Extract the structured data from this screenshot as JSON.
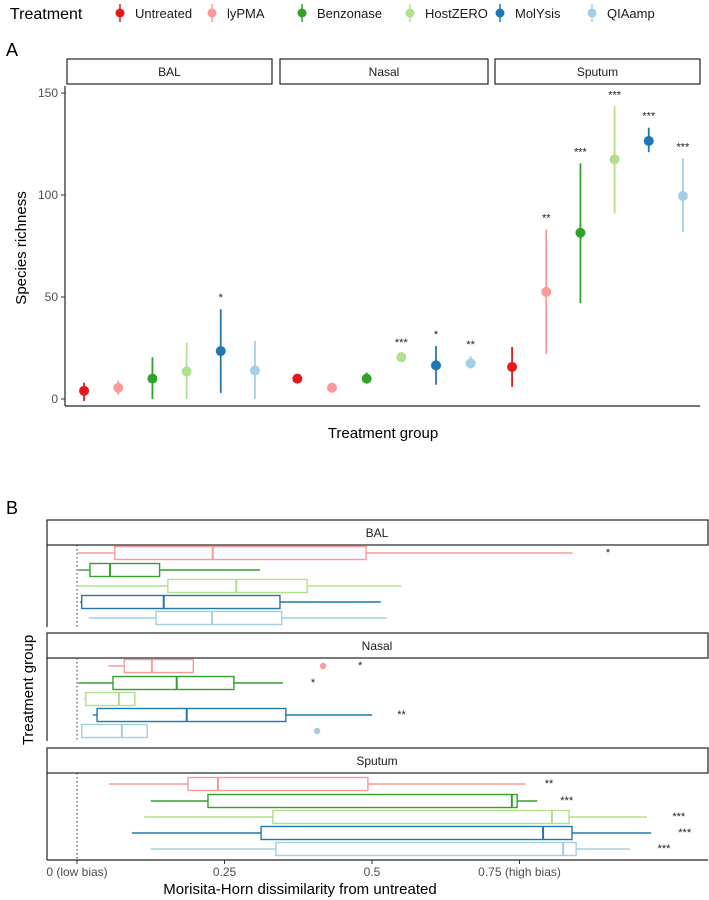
{
  "legend": {
    "title": "Treatment",
    "items": [
      {
        "label": "Untreated",
        "color": "#e31a1c"
      },
      {
        "label": "lyPMA",
        "color": "#fb9a99"
      },
      {
        "label": "Benzonase",
        "color": "#33a02c"
      },
      {
        "label": "HostZERO",
        "color": "#b2df8a"
      },
      {
        "label": "MolYsis",
        "color": "#1f78b4"
      },
      {
        "label": "QIAamp",
        "color": "#a6cee3"
      }
    ]
  },
  "chart_data": [
    {
      "panel_label": "A",
      "type": "scatter",
      "subtype": "point-range by facet",
      "facets": [
        "BAL",
        "Nasal",
        "Sputum"
      ],
      "xlabel": "Treatment group",
      "ylabel": "Species richness",
      "ylim": [
        -4,
        155
      ],
      "yticks": [
        "0",
        "50",
        "100",
        "150"
      ],
      "ytick_values": [
        0,
        50,
        100,
        150
      ],
      "series": {
        "BAL": [
          {
            "treatment": "Untreated",
            "mean": 4,
            "low": -1,
            "high": 8,
            "sig": ""
          },
          {
            "treatment": "lyPMA",
            "mean": 5.5,
            "low": 2,
            "high": 9,
            "sig": ""
          },
          {
            "treatment": "Benzonase",
            "mean": 10,
            "low": 0,
            "high": 20.5,
            "sig": ""
          },
          {
            "treatment": "HostZERO",
            "mean": 13.5,
            "low": 0,
            "high": 27.5,
            "sig": ""
          },
          {
            "treatment": "MolYsis",
            "mean": 23.5,
            "low": 3,
            "high": 44,
            "sig": "*"
          },
          {
            "treatment": "QIAamp",
            "mean": 14,
            "low": 0,
            "high": 28.5,
            "sig": ""
          }
        ],
        "Nasal": [
          {
            "treatment": "Untreated",
            "mean": 10,
            "low": 8,
            "high": 12,
            "sig": ""
          },
          {
            "treatment": "lyPMA",
            "mean": 5.5,
            "low": 4,
            "high": 7,
            "sig": ""
          },
          {
            "treatment": "Benzonase",
            "mean": 10,
            "low": 7.5,
            "high": 13,
            "sig": ""
          },
          {
            "treatment": "HostZERO",
            "mean": 20.5,
            "low": 19,
            "high": 22,
            "sig": "***"
          },
          {
            "treatment": "MolYsis",
            "mean": 16.5,
            "low": 7,
            "high": 26,
            "sig": "*"
          },
          {
            "treatment": "QIAamp",
            "mean": 17.5,
            "low": 15,
            "high": 21,
            "sig": "**"
          }
        ],
        "Sputum": [
          {
            "treatment": "Untreated",
            "mean": 15.7,
            "low": 6,
            "high": 25.5,
            "sig": ""
          },
          {
            "treatment": "lyPMA",
            "mean": 52.5,
            "low": 22,
            "high": 83,
            "sig": "**"
          },
          {
            "treatment": "Benzonase",
            "mean": 81.5,
            "low": 47,
            "high": 115.5,
            "sig": "***"
          },
          {
            "treatment": "HostZERO",
            "mean": 117.5,
            "low": 91,
            "high": 143.5,
            "sig": "***"
          },
          {
            "treatment": "MolYsis",
            "mean": 126.5,
            "low": 121,
            "high": 133,
            "sig": "***"
          },
          {
            "treatment": "QIAamp",
            "mean": 99.5,
            "low": 82,
            "high": 118,
            "sig": "***"
          }
        ]
      }
    },
    {
      "panel_label": "B",
      "type": "box",
      "facets": [
        "BAL",
        "Nasal",
        "Sputum"
      ],
      "xlabel": "Morisita-Horn dissimilarity from untreated",
      "ylabel": "Treatment group",
      "xlim": [
        -0.05,
        1.07
      ],
      "xticks": [
        "0 (low bias)",
        "0.25",
        "0.5",
        "0.75 (high bias)"
      ],
      "xtick_values": [
        0,
        0.25,
        0.5,
        0.75
      ],
      "reference_line": 0,
      "series": {
        "BAL": [
          {
            "treatment": "lyPMA",
            "min": 0.0,
            "q1": 0.064,
            "median": 0.23,
            "q3": 0.49,
            "max": 0.84,
            "outliers": [],
            "sig": "*",
            "sig_at": 0.9
          },
          {
            "treatment": "Benzonase",
            "min": 0.002,
            "q1": 0.022,
            "median": 0.056,
            "q3": 0.14,
            "max": 0.31,
            "outliers": [],
            "sig": ""
          },
          {
            "treatment": "HostZERO",
            "min": 0.0,
            "q1": 0.154,
            "median": 0.27,
            "q3": 0.39,
            "max": 0.55,
            "outliers": [],
            "sig": ""
          },
          {
            "treatment": "MolYsis",
            "min": 0.005,
            "q1": 0.008,
            "median": 0.147,
            "q3": 0.344,
            "max": 0.515,
            "outliers": [],
            "sig": ""
          },
          {
            "treatment": "QIAamp",
            "min": 0.02,
            "q1": 0.134,
            "median": 0.229,
            "q3": 0.347,
            "max": 0.525,
            "outliers": [],
            "sig": ""
          }
        ],
        "Nasal": [
          {
            "treatment": "lyPMA",
            "min": 0.053,
            "q1": 0.08,
            "median": 0.127,
            "q3": 0.197,
            "max": 0.197,
            "outliers": [
              0.417
            ],
            "sig": "*",
            "sig_at": 0.48
          },
          {
            "treatment": "Benzonase",
            "min": 0.002,
            "q1": 0.061,
            "median": 0.169,
            "q3": 0.266,
            "max": 0.349,
            "outliers": [],
            "sig": "*",
            "sig_at": 0.4
          },
          {
            "treatment": "HostZERO",
            "min": 0.012,
            "q1": 0.015,
            "median": 0.071,
            "q3": 0.098,
            "max": 0.1,
            "outliers": [],
            "sig": ""
          },
          {
            "treatment": "MolYsis",
            "min": 0.027,
            "q1": 0.034,
            "median": 0.186,
            "q3": 0.354,
            "max": 0.5,
            "outliers": [],
            "sig": "**",
            "sig_at": 0.55
          },
          {
            "treatment": "QIAamp",
            "min": 0.008,
            "q1": 0.008,
            "median": 0.076,
            "q3": 0.119,
            "max": 0.119,
            "outliers": [
              0.407
            ],
            "sig": ""
          }
        ],
        "Sputum": [
          {
            "treatment": "lyPMA",
            "min": 0.054,
            "q1": 0.188,
            "median": 0.239,
            "q3": 0.493,
            "max": 0.76,
            "outliers": [],
            "sig": "**",
            "sig_at": 0.8
          },
          {
            "treatment": "Benzonase",
            "min": 0.125,
            "q1": 0.222,
            "median": 0.737,
            "q3": 0.746,
            "max": 0.78,
            "outliers": [],
            "sig": "***",
            "sig_at": 0.83
          },
          {
            "treatment": "HostZERO",
            "min": 0.114,
            "q1": 0.332,
            "median": 0.805,
            "q3": 0.834,
            "max": 0.966,
            "outliers": [],
            "sig": "***",
            "sig_at": 1.02
          },
          {
            "treatment": "MolYsis",
            "min": 0.093,
            "q1": 0.312,
            "median": 0.79,
            "q3": 0.839,
            "max": 0.973,
            "outliers": [],
            "sig": "***",
            "sig_at": 1.03
          },
          {
            "treatment": "QIAamp",
            "min": 0.125,
            "q1": 0.337,
            "median": 0.824,
            "q3": 0.846,
            "max": 0.937,
            "outliers": [],
            "sig": "***",
            "sig_at": 0.995
          }
        ]
      }
    }
  ]
}
